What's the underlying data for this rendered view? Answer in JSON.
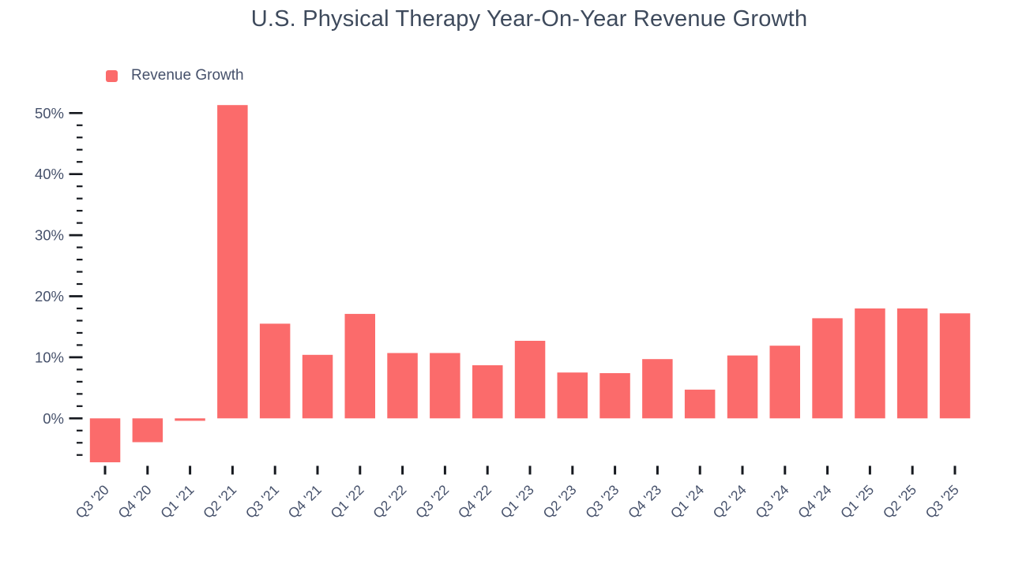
{
  "chart_data": {
    "type": "bar",
    "title": "U.S. Physical Therapy Year-On-Year Revenue Growth",
    "series": [
      {
        "name": "Revenue Growth",
        "color": "#fb6b6b"
      }
    ],
    "categories": [
      "Q3 '20",
      "Q4 '20",
      "Q1 '21",
      "Q2 '21",
      "Q3 '21",
      "Q4 '21",
      "Q1 '22",
      "Q2 '22",
      "Q3 '22",
      "Q4 '22",
      "Q1 '23",
      "Q2 '23",
      "Q3 '23",
      "Q4 '23",
      "Q1 '24",
      "Q2 '24",
      "Q3 '24",
      "Q4 '24",
      "Q1 '25",
      "Q2 '25",
      "Q3 '25"
    ],
    "values": [
      -7.2,
      -3.9,
      -0.4,
      51.3,
      15.5,
      10.4,
      17.1,
      10.7,
      10.7,
      8.7,
      12.7,
      7.5,
      7.4,
      9.7,
      4.7,
      10.3,
      11.9,
      16.4,
      18.0,
      18.0,
      17.2
    ],
    "xlabel": "",
    "ylabel": "",
    "ylim": [
      -7.3,
      51.3
    ],
    "y_major_ticks": [
      {
        "value": 0,
        "label": "0%"
      },
      {
        "value": 10,
        "label": "10%"
      },
      {
        "value": 20,
        "label": "20%"
      },
      {
        "value": 30,
        "label": "30%"
      },
      {
        "value": 40,
        "label": "40%"
      },
      {
        "value": 50,
        "label": "50%"
      }
    ],
    "y_minor_tick_step": 2,
    "grid": false,
    "legend_position": "top-left",
    "tick_color": "#16191f"
  }
}
